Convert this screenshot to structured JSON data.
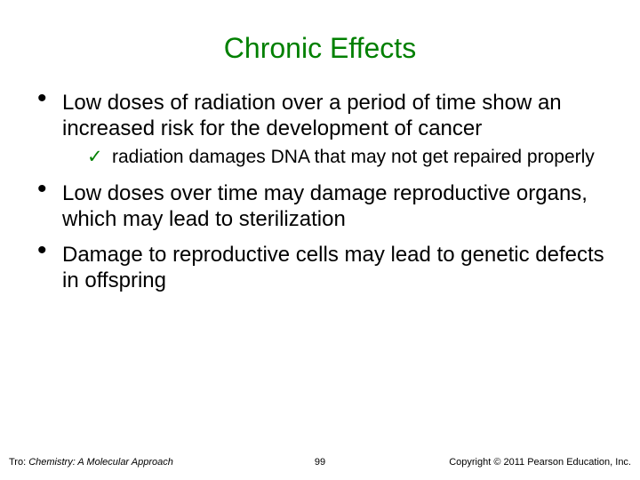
{
  "title": "Chronic Effects",
  "title_color": "#008000",
  "text_color": "#000000",
  "check_color": "#008000",
  "background_color": "#ffffff",
  "bullets": [
    {
      "text": "Low doses of radiation over a period of time show an increased risk for the development of cancer",
      "sub": [
        {
          "text": "radiation damages DNA that may not get repaired properly"
        }
      ]
    },
    {
      "text": "Low doses over time may damage reproductive organs, which may lead to sterilization",
      "sub": []
    },
    {
      "text": "Damage to reproductive cells may lead to genetic defects in offspring",
      "sub": []
    }
  ],
  "footer": {
    "left_prefix": "Tro: ",
    "left_book": "Chemistry: A Molecular Approach",
    "page": "99",
    "right": "Copyright © 2011 Pearson Education, Inc."
  },
  "fonts": {
    "title_pt": 32,
    "body_pt": 24,
    "sub_pt": 21,
    "footer_pt": 11
  }
}
